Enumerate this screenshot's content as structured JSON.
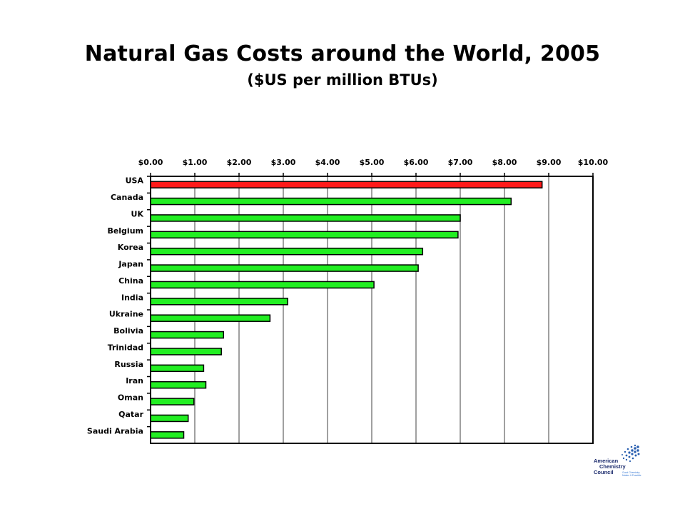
{
  "header": {
    "title": "Natural Gas Costs around the World, 2005",
    "subtitle": "($US per million BTUs)"
  },
  "logo": {
    "line1": "American",
    "line2": "Chemistry",
    "line3": "Council",
    "tagline1": "Good Chemistry",
    "tagline2": "Makes It Possible"
  },
  "colors": {
    "highlight_bar": "#ff1a1a",
    "normal_bar": "#22ee22",
    "bar_outline": "#000000",
    "gridline": "#888888",
    "logo_text": "#1a2a6c"
  },
  "chart_data": {
    "type": "bar",
    "orientation": "horizontal",
    "title": "Natural Gas Costs around the World, 2005",
    "subtitle": "($US per million BTUs)",
    "xlabel": "",
    "ylabel": "",
    "xlim": [
      0,
      10
    ],
    "x_axis_position": "top",
    "grid": true,
    "legend": "none",
    "x_ticks": [
      0,
      1,
      2,
      3,
      4,
      5,
      6,
      7,
      8,
      9,
      10
    ],
    "x_tick_labels": [
      "$0.00",
      "$1.00",
      "$2.00",
      "$3.00",
      "$4.00",
      "$5.00",
      "$6.00",
      "$7.00",
      "$8.00",
      "$9.00",
      "$10.00"
    ],
    "categories": [
      "USA",
      "Canada",
      "UK",
      "Belgium",
      "Korea",
      "Japan",
      "China",
      "India",
      "Ukraine",
      "Bolivia",
      "Trinidad",
      "Russia",
      "Iran",
      "Oman",
      "Qatar",
      "Saudi Arabia"
    ],
    "values": [
      8.85,
      8.15,
      7.0,
      6.95,
      6.15,
      6.05,
      5.05,
      3.1,
      2.7,
      1.65,
      1.6,
      1.2,
      1.25,
      0.98,
      0.85,
      0.75
    ],
    "highlighted": [
      "USA"
    ]
  }
}
